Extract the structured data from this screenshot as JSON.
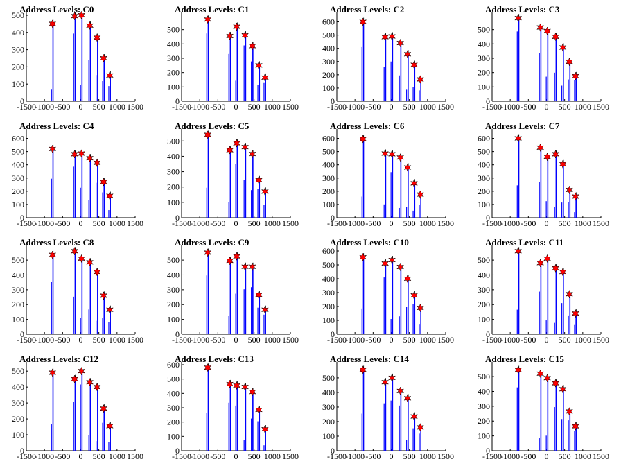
{
  "chart_data": [
    {
      "title": "Address Levels: C0",
      "type": "bar",
      "xlim": [
        -1500,
        1500
      ],
      "ylim": [
        0,
        500
      ],
      "xticks": [
        "-1500",
        "-1000",
        "-500",
        "0",
        "500",
        "1000",
        "1500"
      ],
      "yticks": [
        "0",
        "100",
        "200",
        "300",
        "400",
        "500"
      ],
      "peaks": [
        {
          "x": -780,
          "y": 450
        },
        {
          "x": -170,
          "y": 495
        },
        {
          "x": 20,
          "y": 500
        },
        {
          "x": 250,
          "y": 440
        },
        {
          "x": 450,
          "y": 370
        },
        {
          "x": 630,
          "y": 250
        },
        {
          "x": 800,
          "y": 150
        }
      ]
    },
    {
      "title": "Address Levels: C1",
      "type": "bar",
      "xlim": [
        -1500,
        1500
      ],
      "ylim": [
        0,
        600
      ],
      "xticks": [
        "-1500",
        "-1000",
        "-500",
        "0",
        "500",
        "1000",
        "1500"
      ],
      "yticks": [
        "0",
        "100",
        "200",
        "300",
        "400",
        "500"
      ],
      "peaks": [
        {
          "x": -780,
          "y": 570
        },
        {
          "x": -170,
          "y": 455
        },
        {
          "x": 20,
          "y": 520
        },
        {
          "x": 250,
          "y": 460
        },
        {
          "x": 450,
          "y": 385
        },
        {
          "x": 630,
          "y": 250
        },
        {
          "x": 800,
          "y": 165
        }
      ]
    },
    {
      "title": "Address Levels: C2",
      "type": "bar",
      "xlim": [
        -1500,
        1500
      ],
      "ylim": [
        0,
        650
      ],
      "xticks": [
        "-1500",
        "-1000",
        "-500",
        "0",
        "500",
        "1000",
        "1500"
      ],
      "yticks": [
        "0",
        "100",
        "200",
        "300",
        "400",
        "500",
        "600"
      ],
      "peaks": [
        {
          "x": -780,
          "y": 600
        },
        {
          "x": -170,
          "y": 485
        },
        {
          "x": 20,
          "y": 490
        },
        {
          "x": 250,
          "y": 440
        },
        {
          "x": 450,
          "y": 355
        },
        {
          "x": 630,
          "y": 275
        },
        {
          "x": 800,
          "y": 165
        }
      ]
    },
    {
      "title": "Address Levels: C3",
      "type": "bar",
      "xlim": [
        -1500,
        1500
      ],
      "ylim": [
        0,
        600
      ],
      "xticks": [
        "-1500",
        "-1000",
        "-500",
        "0",
        "500",
        "1000",
        "1500"
      ],
      "yticks": [
        "0",
        "100",
        "200",
        "300",
        "400",
        "500"
      ],
      "peaks": [
        {
          "x": -780,
          "y": 580
        },
        {
          "x": -170,
          "y": 515
        },
        {
          "x": 20,
          "y": 490
        },
        {
          "x": 250,
          "y": 450
        },
        {
          "x": 450,
          "y": 375
        },
        {
          "x": 630,
          "y": 275
        },
        {
          "x": 800,
          "y": 175
        }
      ]
    },
    {
      "title": "Address Levels: C4",
      "type": "bar",
      "xlim": [
        -1500,
        1500
      ],
      "ylim": [
        0,
        650
      ],
      "xticks": [
        "-1500",
        "-1000",
        "-500",
        "0",
        "500",
        "1000",
        "1500"
      ],
      "yticks": [
        "0",
        "100",
        "200",
        "300",
        "400",
        "500",
        "600"
      ],
      "peaks": [
        {
          "x": -780,
          "y": 520
        },
        {
          "x": -170,
          "y": 480
        },
        {
          "x": 20,
          "y": 485
        },
        {
          "x": 250,
          "y": 450
        },
        {
          "x": 450,
          "y": 415
        },
        {
          "x": 630,
          "y": 270
        },
        {
          "x": 800,
          "y": 165
        }
      ]
    },
    {
      "title": "Address Levels: C5",
      "type": "bar",
      "xlim": [
        -1500,
        1500
      ],
      "ylim": [
        0,
        560
      ],
      "xticks": [
        "-1500",
        "-1000",
        "-500",
        "0",
        "500",
        "1000",
        "1500"
      ],
      "yticks": [
        "0",
        "100",
        "200",
        "300",
        "400",
        "500"
      ],
      "peaks": [
        {
          "x": -780,
          "y": 540
        },
        {
          "x": -170,
          "y": 440
        },
        {
          "x": 20,
          "y": 485
        },
        {
          "x": 250,
          "y": 460
        },
        {
          "x": 450,
          "y": 415
        },
        {
          "x": 630,
          "y": 245
        },
        {
          "x": 800,
          "y": 170
        }
      ]
    },
    {
      "title": "Address Levels: C6",
      "type": "bar",
      "xlim": [
        -1500,
        1500
      ],
      "ylim": [
        0,
        650
      ],
      "xticks": [
        "-1500",
        "-1000",
        "-500",
        "0",
        "500",
        "1000",
        "1500"
      ],
      "yticks": [
        "0",
        "100",
        "200",
        "300",
        "400",
        "500",
        "600"
      ],
      "peaks": [
        {
          "x": -780,
          "y": 595
        },
        {
          "x": -170,
          "y": 485
        },
        {
          "x": 20,
          "y": 480
        },
        {
          "x": 250,
          "y": 455
        },
        {
          "x": 450,
          "y": 380
        },
        {
          "x": 630,
          "y": 260
        },
        {
          "x": 800,
          "y": 175
        }
      ]
    },
    {
      "title": "Address Levels: C7",
      "type": "bar",
      "xlim": [
        -1500,
        1500
      ],
      "ylim": [
        0,
        650
      ],
      "xticks": [
        "-1500",
        "-1000",
        "-500",
        "0",
        "500",
        "1000",
        "1500"
      ],
      "yticks": [
        "0",
        "100",
        "200",
        "300",
        "400",
        "500",
        "600"
      ],
      "peaks": [
        {
          "x": -780,
          "y": 600
        },
        {
          "x": -170,
          "y": 530
        },
        {
          "x": 20,
          "y": 460
        },
        {
          "x": 250,
          "y": 480
        },
        {
          "x": 450,
          "y": 405
        },
        {
          "x": 630,
          "y": 210
        },
        {
          "x": 800,
          "y": 160
        }
      ]
    },
    {
      "title": "Address Levels: C8",
      "type": "bar",
      "xlim": [
        -1500,
        1500
      ],
      "ylim": [
        0,
        580
      ],
      "xticks": [
        "-1500",
        "-1000",
        "-500",
        "0",
        "500",
        "1000",
        "1500"
      ],
      "yticks": [
        "0",
        "100",
        "200",
        "300",
        "400",
        "500"
      ],
      "peaks": [
        {
          "x": -780,
          "y": 535
        },
        {
          "x": -170,
          "y": 560
        },
        {
          "x": 20,
          "y": 510
        },
        {
          "x": 250,
          "y": 485
        },
        {
          "x": 450,
          "y": 420
        },
        {
          "x": 630,
          "y": 260
        },
        {
          "x": 800,
          "y": 165
        }
      ]
    },
    {
      "title": "Address Levels: C9",
      "type": "bar",
      "xlim": [
        -1500,
        1500
      ],
      "ylim": [
        0,
        580
      ],
      "xticks": [
        "-1500",
        "-1000",
        "-500",
        "0",
        "500",
        "1000",
        "1500"
      ],
      "yticks": [
        "0",
        "100",
        "200",
        "300",
        "400",
        "500"
      ],
      "peaks": [
        {
          "x": -780,
          "y": 550
        },
        {
          "x": -170,
          "y": 495
        },
        {
          "x": 20,
          "y": 525
        },
        {
          "x": 250,
          "y": 455
        },
        {
          "x": 450,
          "y": 455
        },
        {
          "x": 630,
          "y": 265
        },
        {
          "x": 800,
          "y": 165
        }
      ]
    },
    {
      "title": "Address Levels: C10",
      "type": "bar",
      "xlim": [
        -1500,
        1500
      ],
      "ylim": [
        0,
        620
      ],
      "xticks": [
        "-1500",
        "-1000",
        "-500",
        "0",
        "500",
        "1000",
        "1500"
      ],
      "yticks": [
        "0",
        "100",
        "200",
        "300",
        "400",
        "500",
        "600"
      ],
      "peaks": [
        {
          "x": -780,
          "y": 555
        },
        {
          "x": -170,
          "y": 510
        },
        {
          "x": 20,
          "y": 535
        },
        {
          "x": 250,
          "y": 485
        },
        {
          "x": 450,
          "y": 400
        },
        {
          "x": 630,
          "y": 280
        },
        {
          "x": 800,
          "y": 190
        }
      ]
    },
    {
      "title": "Address Levels: C11",
      "type": "bar",
      "xlim": [
        -1500,
        1500
      ],
      "ylim": [
        0,
        580
      ],
      "xticks": [
        "-1500",
        "-1000",
        "-500",
        "0",
        "500",
        "1000",
        "1500"
      ],
      "yticks": [
        "0",
        "100",
        "200",
        "300",
        "400",
        "500"
      ],
      "peaks": [
        {
          "x": -780,
          "y": 560
        },
        {
          "x": -170,
          "y": 480
        },
        {
          "x": 20,
          "y": 510
        },
        {
          "x": 250,
          "y": 445
        },
        {
          "x": 450,
          "y": 420
        },
        {
          "x": 630,
          "y": 270
        },
        {
          "x": 800,
          "y": 140
        }
      ]
    },
    {
      "title": "Address Levels: C12",
      "type": "bar",
      "xlim": [
        -1500,
        1500
      ],
      "ylim": [
        0,
        540
      ],
      "xticks": [
        "-1500",
        "-1000",
        "-500",
        "0",
        "500",
        "1000",
        "1500"
      ],
      "yticks": [
        "0",
        "100",
        "200",
        "300",
        "400",
        "500"
      ],
      "peaks": [
        {
          "x": -780,
          "y": 490
        },
        {
          "x": -170,
          "y": 450
        },
        {
          "x": 20,
          "y": 500
        },
        {
          "x": 250,
          "y": 430
        },
        {
          "x": 450,
          "y": 400
        },
        {
          "x": 630,
          "y": 265
        },
        {
          "x": 800,
          "y": 155
        }
      ]
    },
    {
      "title": "Address Levels: C13",
      "type": "bar",
      "xlim": [
        -1500,
        1500
      ],
      "ylim": [
        0,
        600
      ],
      "xticks": [
        "-1500",
        "-1000",
        "-500",
        "0",
        "500",
        "1000",
        "1500"
      ],
      "yticks": [
        "0",
        "100",
        "200",
        "300",
        "400",
        "500",
        "600"
      ],
      "peaks": [
        {
          "x": -780,
          "y": 580
        },
        {
          "x": -170,
          "y": 465
        },
        {
          "x": 20,
          "y": 455
        },
        {
          "x": 250,
          "y": 445
        },
        {
          "x": 450,
          "y": 410
        },
        {
          "x": 630,
          "y": 285
        },
        {
          "x": 800,
          "y": 150
        }
      ]
    },
    {
      "title": "Address Levels: C14",
      "type": "bar",
      "xlim": [
        -1500,
        1500
      ],
      "ylim": [
        0,
        590
      ],
      "xticks": [
        "-1500",
        "-1000",
        "-500",
        "0",
        "500",
        "1000",
        "1500"
      ],
      "yticks": [
        "0",
        "100",
        "200",
        "300",
        "400",
        "500"
      ],
      "peaks": [
        {
          "x": -780,
          "y": 555
        },
        {
          "x": -170,
          "y": 470
        },
        {
          "x": 20,
          "y": 500
        },
        {
          "x": 250,
          "y": 410
        },
        {
          "x": 450,
          "y": 360
        },
        {
          "x": 630,
          "y": 235
        },
        {
          "x": 800,
          "y": 160
        }
      ]
    },
    {
      "title": "Address Levels: C15",
      "type": "bar",
      "xlim": [
        -1500,
        1500
      ],
      "ylim": [
        0,
        580
      ],
      "xticks": [
        "-1500",
        "-1000",
        "-500",
        "0",
        "500",
        "1000",
        "1500"
      ],
      "yticks": [
        "0",
        "100",
        "200",
        "300",
        "400",
        "500"
      ],
      "peaks": [
        {
          "x": -780,
          "y": 545
        },
        {
          "x": -170,
          "y": 520
        },
        {
          "x": 20,
          "y": 490
        },
        {
          "x": 250,
          "y": 455
        },
        {
          "x": 450,
          "y": 415
        },
        {
          "x": 630,
          "y": 265
        },
        {
          "x": 800,
          "y": 165
        }
      ]
    }
  ],
  "colors": {
    "bars": "#0000ff",
    "peak_markers": "#ff0000",
    "axes": "#000000"
  },
  "icons": {
    "peak_marker": "star-icon"
  }
}
